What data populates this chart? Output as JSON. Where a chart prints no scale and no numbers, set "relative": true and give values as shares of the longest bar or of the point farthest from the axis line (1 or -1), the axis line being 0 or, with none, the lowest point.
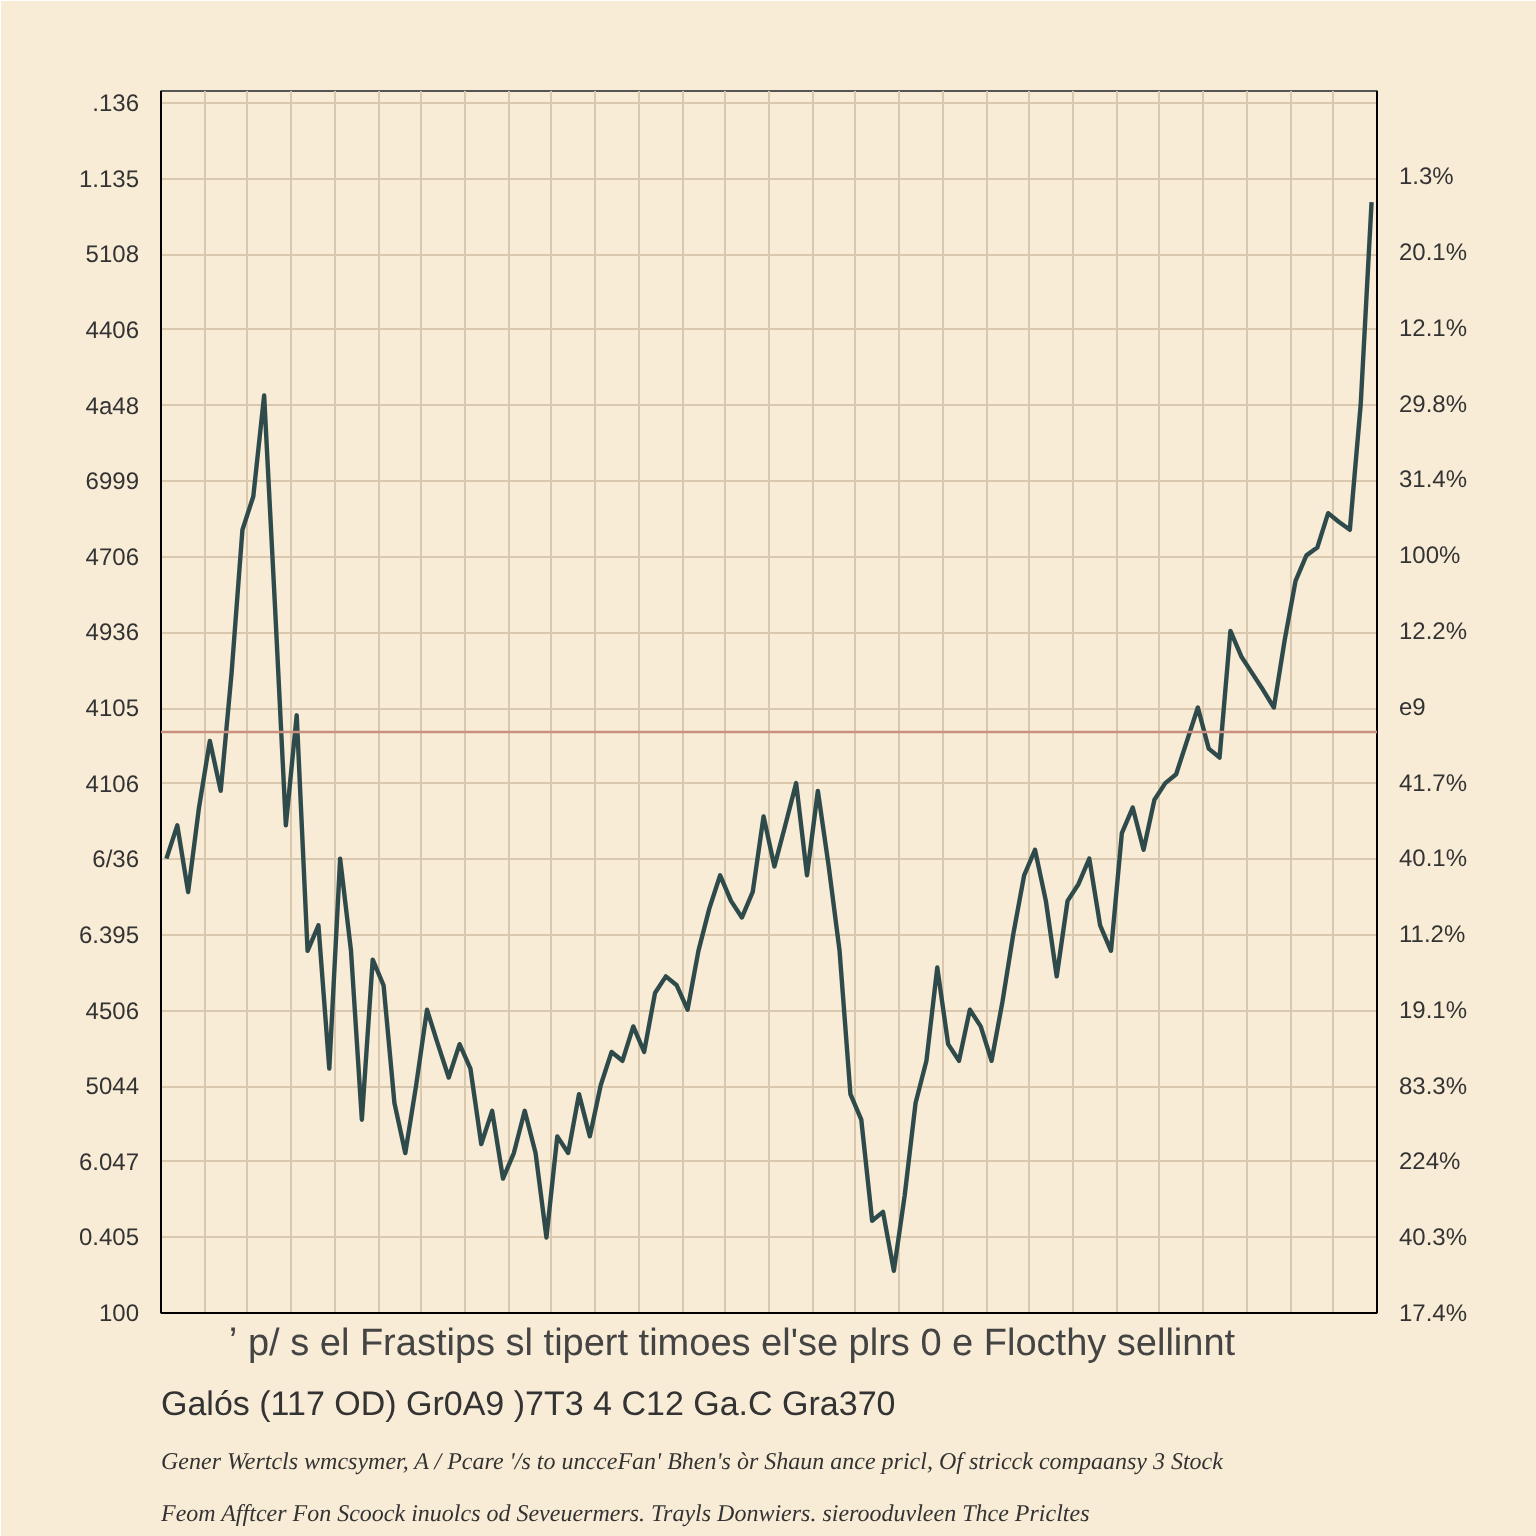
{
  "chart_data": {
    "type": "line",
    "xlabel": "ʼ p/ s  el Frastips  sl tipert timoes  el'se  plrs  0 e  Flocthy  sellinnt",
    "annotations": [
      ".136\n1.135\n5108\n4406\n4a48\n6999\n4706\n4936\n4105\n4106\n6/36\n6.395\n4506\n5044\n6.047\n0.405\n100",
      "1.3%\n20.1%\n12.1%\n29.8%\n31.4%\n100%\n12.2%\ne9\n41.7%\n40.1%\n11.2%\n19.1%\n83.3%\n224%\n40.3%\n17.4%",
      "Galós   (117 OD)   Gr0A9      )7T3   4 C12   Ga.C   Gra370",
      "Gener Wertcls wmcsymer, A / Pcare '/s to uncceFan' Bhen's òr Shaun ance pricl, Of stricck compaansy 3 Stock",
      "Feom Afftcer Fon Scoock inuolcs od Seveuermers. Trayls Donwiers. sierooduvleen Thce Pricltes"
    ],
    "categories": [
      null,
      null,
      null,
      null,
      null,
      null,
      null,
      null,
      null,
      null,
      null,
      null,
      null,
      null,
      null,
      null,
      null,
      null,
      null,
      null,
      null,
      null,
      null,
      null,
      null,
      null,
      null,
      null,
      null,
      null,
      null,
      null,
      null,
      null,
      null,
      null,
      null,
      null,
      null,
      null,
      null,
      null,
      null,
      null,
      null,
      null,
      null,
      null,
      null,
      null,
      null,
      null,
      null,
      null,
      null,
      null,
      null,
      null,
      null,
      null,
      null,
      null,
      null,
      null,
      null,
      null,
      null,
      null,
      null,
      null,
      null,
      null,
      null,
      null,
      null,
      null,
      null,
      null,
      null,
      null,
      null,
      null,
      null,
      null,
      null,
      null,
      null,
      null,
      null,
      null,
      null,
      null,
      null,
      null,
      null,
      null,
      null,
      null,
      null,
      null,
      null,
      null,
      null,
      null,
      null,
      null,
      null,
      null,
      null,
      null,
      null,
      null
    ],
    "relative": true,
    "series": [
      {
        "color": "#2f4a4a",
        "values": [
          0.409,
          0.439,
          0.379,
          0.455,
          0.515,
          0.47,
          0.576,
          0.705,
          0.735,
          0.826,
          0.636,
          0.439,
          0.538,
          0.326,
          0.349,
          0.22,
          0.409,
          0.326,
          0.174,
          0.318,
          0.295,
          0.189,
          0.144,
          0.205,
          0.273,
          0.242,
          0.212,
          0.242,
          0.22,
          0.152,
          0.182,
          0.121,
          0.144,
          0.182,
          0.144,
          0.068,
          0.159,
          0.144,
          0.197,
          0.159,
          0.205,
          0.235,
          0.227,
          0.258,
          0.235,
          0.288,
          0.303,
          0.295,
          0.273,
          0.326,
          0.364,
          0.394,
          0.371,
          0.356,
          0.379,
          0.447,
          0.402,
          0.439,
          0.477,
          0.394,
          0.47,
          0.402,
          0.326,
          0.197,
          0.174,
          0.083,
          0.091,
          0.038,
          0.106,
          0.189,
          0.227,
          0.311,
          0.242,
          0.227,
          0.273,
          0.258,
          0.227,
          0.28,
          0.341,
          0.394,
          0.417,
          0.371,
          0.303,
          0.371,
          0.386,
          0.409,
          0.349,
          0.326,
          0.432,
          0.455,
          0.417,
          0.462,
          0.477,
          0.485,
          0.515,
          0.545,
          0.508,
          0.5,
          0.614,
          0.591,
          0.576,
          0.561,
          0.545,
          0.606,
          0.659,
          0.682,
          0.689,
          0.72,
          0.712,
          0.705,
          0.818,
          1
        ]
      }
    ],
    "ref_lines": [
      {
        "axis": "y",
        "value": 0.523,
        "color": "#c9907f"
      }
    ],
    "grid": true,
    "line_style": "solid"
  }
}
